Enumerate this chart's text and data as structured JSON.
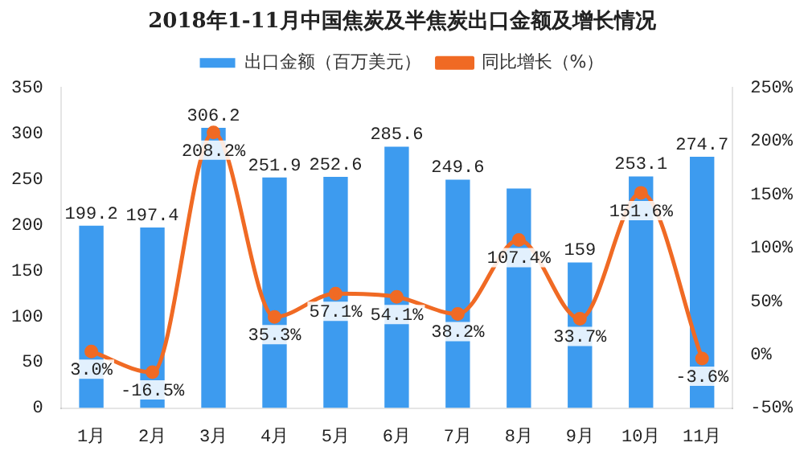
{
  "chart_data": {
    "type": "bar",
    "title": "2018年1-11月中国焦炭及半焦炭出口金额及增长情况",
    "categories": [
      "1月",
      "2月",
      "3月",
      "4月",
      "5月",
      "6月",
      "7月",
      "8月",
      "9月",
      "10月",
      "11月"
    ],
    "series": [
      {
        "name": "出口金额（百万美元）",
        "color": "#3d9bef",
        "values": [
          199.2,
          197.4,
          306.2,
          251.9,
          252.6,
          285.6,
          249.6,
          240,
          159,
          253.1,
          274.7
        ],
        "value_labels": [
          "199.2",
          "197.4",
          "306.2",
          "251.9",
          "252.6",
          "285.6",
          "249.6",
          null,
          "159",
          "253.1",
          "274.7"
        ]
      },
      {
        "name": "同比增长（%）",
        "type": "line",
        "axis": "y2",
        "color": "#f06a24",
        "marker": "circle",
        "values": [
          3.0,
          -16.5,
          208.2,
          35.3,
          57.1,
          54.1,
          38.2,
          107.4,
          33.7,
          151.6,
          -3.6
        ],
        "value_labels": [
          "3.0%",
          "-16.5%",
          "208.2%",
          "35.3%",
          "57.1%",
          "54.1%",
          "38.2%",
          "107.4%",
          "33.7%",
          "151.6%",
          "-3.6%"
        ]
      }
    ],
    "ylim": [
      0,
      350
    ],
    "yticks": [
      0,
      50,
      100,
      150,
      200,
      250,
      300,
      350
    ],
    "y2lim": [
      -50,
      250
    ],
    "y2ticks": [
      {
        "value": -50,
        "label": "-50%"
      },
      {
        "value": 0,
        "label": "0%"
      },
      {
        "value": 50,
        "label": "50%"
      },
      {
        "value": 100,
        "label": "100%"
      },
      {
        "value": 150,
        "label": "150%"
      },
      {
        "value": 200,
        "label": "200%"
      },
      {
        "value": 250,
        "label": "250%"
      }
    ],
    "grid": false,
    "legend": "top"
  }
}
